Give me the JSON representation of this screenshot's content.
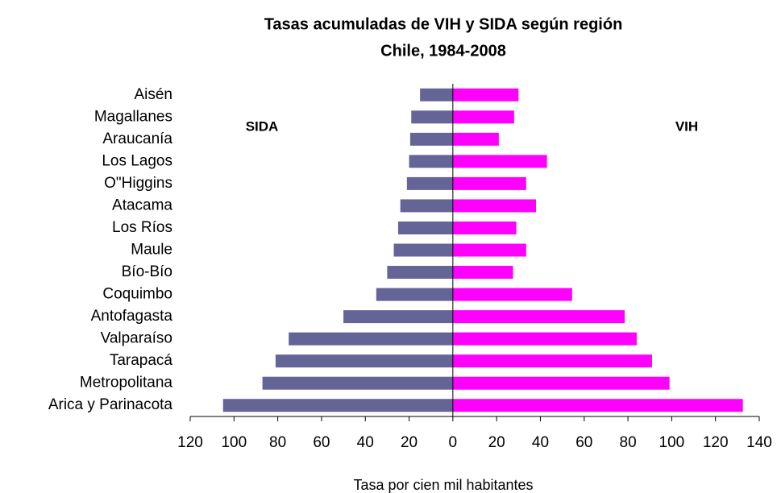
{
  "chart_data": {
    "type": "butterfly-bar",
    "title": "Tasas acumuladas de VIH y SIDA según región",
    "subtitle": "Chile, 1984-2008",
    "x_label": "Tasa por cien mil habitantes",
    "orientation": "horizontal",
    "categories": [
      "Aisén",
      "Magallanes",
      "Araucanía",
      "Los Lagos",
      "O\"Higgins",
      "Atacama",
      "Los Ríos",
      "Maule",
      "Bío-Bío",
      "Coquimbo",
      "Antofagasta",
      "Valparaíso",
      "Tarapacá",
      "Metropolitana",
      "Arica y Parinacota"
    ],
    "series": [
      {
        "name": "SIDA",
        "color": "#646496",
        "values": [
          -15,
          -19,
          -19.5,
          -20,
          -21,
          -24,
          -25,
          -27,
          -30,
          -35,
          -50,
          -75,
          -81,
          -87,
          -105
        ]
      },
      {
        "name": "VIH",
        "color": "#ff00ff",
        "values": [
          30,
          28,
          21,
          43,
          33.5,
          38,
          29,
          33.5,
          27.5,
          54.5,
          78.5,
          84,
          91,
          99,
          132.5
        ]
      }
    ],
    "xlim": [
      -120,
      140
    ],
    "xticks": [
      {
        "value": -120,
        "label": "120"
      },
      {
        "value": -100,
        "label": "100"
      },
      {
        "value": -80,
        "label": "80"
      },
      {
        "value": -60,
        "label": "60"
      },
      {
        "value": -40,
        "label": "40"
      },
      {
        "value": -20,
        "label": "20"
      },
      0,
      20,
      40,
      60,
      80,
      100,
      120,
      140
    ]
  }
}
